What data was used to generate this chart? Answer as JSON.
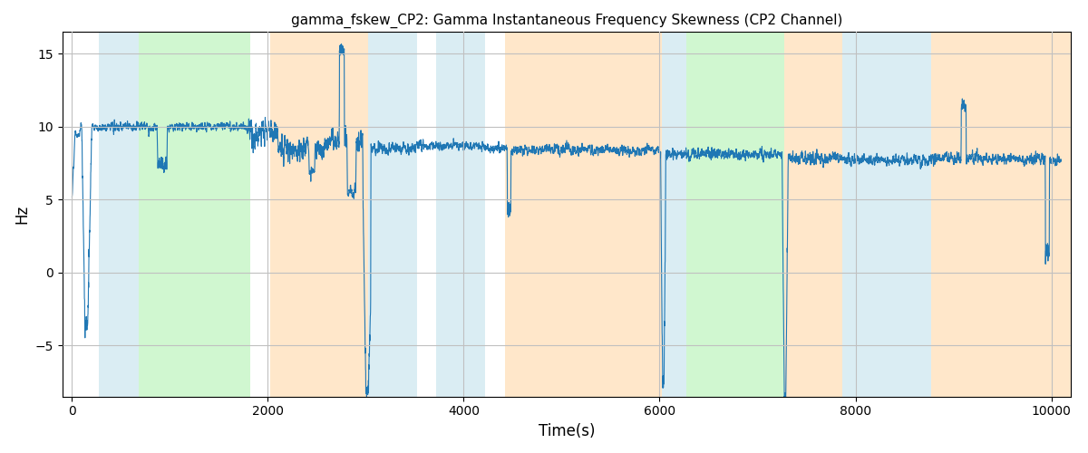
{
  "title": "gamma_fskew_CP2: Gamma Instantaneous Frequency Skewness (CP2 Channel)",
  "xlabel": "Time(s)",
  "ylabel": "Hz",
  "xlim": [
    -100,
    10200
  ],
  "ylim": [
    -8.5,
    16.5
  ],
  "line_color": "#1f77b4",
  "line_width": 0.8,
  "bg_bands": [
    {
      "xmin": 270,
      "xmax": 680,
      "color": "#add8e6",
      "alpha": 0.45
    },
    {
      "xmin": 680,
      "xmax": 1820,
      "color": "#90ee90",
      "alpha": 0.42
    },
    {
      "xmin": 2020,
      "xmax": 3020,
      "color": "#ffd5a0",
      "alpha": 0.55
    },
    {
      "xmin": 3020,
      "xmax": 3520,
      "color": "#add8e6",
      "alpha": 0.45
    },
    {
      "xmin": 3720,
      "xmax": 4220,
      "color": "#add8e6",
      "alpha": 0.45
    },
    {
      "xmin": 4420,
      "xmax": 6020,
      "color": "#ffd5a0",
      "alpha": 0.55
    },
    {
      "xmin": 6020,
      "xmax": 6270,
      "color": "#add8e6",
      "alpha": 0.45
    },
    {
      "xmin": 6270,
      "xmax": 7270,
      "color": "#90ee90",
      "alpha": 0.42
    },
    {
      "xmin": 7270,
      "xmax": 7870,
      "color": "#ffd5a0",
      "alpha": 0.55
    },
    {
      "xmin": 7870,
      "xmax": 8770,
      "color": "#add8e6",
      "alpha": 0.45
    },
    {
      "xmin": 8770,
      "xmax": 10300,
      "color": "#ffd5a0",
      "alpha": 0.55
    }
  ],
  "grid_color": "#c0c0c0",
  "figsize": [
    12,
    5
  ],
  "dpi": 100
}
